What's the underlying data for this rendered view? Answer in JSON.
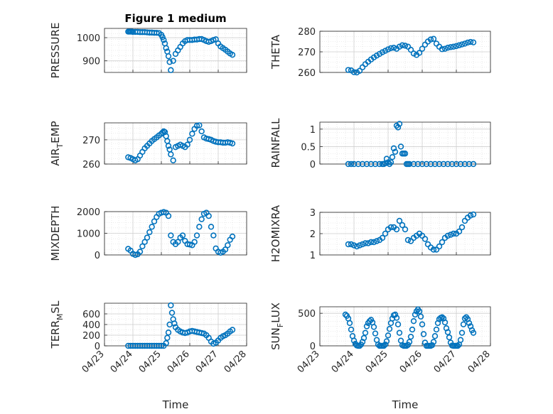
{
  "figure": {
    "title": "Figure 1 medium",
    "xlabel": "Time",
    "colors": {
      "marker": "#0072BD",
      "grid": "#d9d9d9",
      "axes": "#262626",
      "background": "#ffffff"
    }
  },
  "chart_data": [
    {
      "id": "pressure",
      "type": "scatter",
      "title": "Figure 1 medium",
      "ylabel": "PRESSURE",
      "ylabel_sub": "",
      "ylabel_tail": "",
      "xlim": [
        "04/23",
        "04/28"
      ],
      "ylim": [
        850,
        1040
      ],
      "yticks": [
        900,
        1000
      ],
      "ytick_labels": [
        "900",
        "1000"
      ],
      "xticks": [],
      "grid": true,
      "x": [
        "04/23 20:00",
        "04/23 21:00",
        "04/23 22:00",
        "04/23 23:00",
        "04/24 00:00",
        "04/24 02:00",
        "04/24 04:00",
        "04/24 06:00",
        "04/24 08:00",
        "04/24 10:00",
        "04/24 12:00",
        "04/24 14:00",
        "04/24 16:00",
        "04/24 18:00",
        "04/24 20:00",
        "04/24 22:00",
        "04/25 00:00",
        "04/25 01:00",
        "04/25 02:00",
        "04/25 03:00",
        "04/25 04:00",
        "04/25 05:00",
        "04/25 06:00",
        "04/25 07:00",
        "04/25 08:00",
        "04/25 10:00",
        "04/25 12:00",
        "04/25 14:00",
        "04/25 16:00",
        "04/25 18:00",
        "04/25 20:00",
        "04/25 22:00",
        "04/26 00:00",
        "04/26 02:00",
        "04/26 04:00",
        "04/26 06:00",
        "04/26 08:00",
        "04/26 10:00",
        "04/26 12:00",
        "04/26 14:00",
        "04/26 16:00",
        "04/26 18:00",
        "04/26 20:00",
        "04/26 22:00",
        "04/27 00:00",
        "04/27 02:00",
        "04/27 04:00",
        "04/27 06:00",
        "04/27 08:00",
        "04/27 10:00",
        "04/27 12:00"
      ],
      "y": [
        1026,
        1026,
        1026,
        1026,
        1025,
        1025,
        1025,
        1024,
        1024,
        1024,
        1023,
        1022,
        1022,
        1021,
        1021,
        1020,
        1012,
        1002,
        990,
        975,
        955,
        940,
        920,
        895,
        860,
        900,
        930,
        945,
        960,
        975,
        985,
        990,
        990,
        990,
        992,
        992,
        994,
        994,
        990,
        985,
        982,
        985,
        990,
        993,
        975,
        962,
        955,
        948,
        940,
        932,
        926
      ]
    },
    {
      "id": "theta",
      "type": "scatter",
      "ylabel": "THETA",
      "ylabel_sub": "",
      "ylabel_tail": "",
      "xlim": [
        "04/23",
        "04/28"
      ],
      "ylim": [
        260,
        280
      ],
      "yticks": [
        260,
        270,
        280
      ],
      "ytick_labels": [
        "260",
        "270",
        "280"
      ],
      "xticks": [],
      "grid": true,
      "x": [
        "04/23 20:00",
        "04/23 22:00",
        "04/24 00:00",
        "04/24 02:00",
        "04/24 04:00",
        "04/24 06:00",
        "04/24 08:00",
        "04/24 10:00",
        "04/24 12:00",
        "04/24 14:00",
        "04/24 16:00",
        "04/24 18:00",
        "04/24 20:00",
        "04/24 22:00",
        "04/25 00:00",
        "04/25 02:00",
        "04/25 04:00",
        "04/25 06:00",
        "04/25 08:00",
        "04/25 10:00",
        "04/25 12:00",
        "04/25 14:00",
        "04/25 16:00",
        "04/25 18:00",
        "04/25 20:00",
        "04/25 22:00",
        "04/26 00:00",
        "04/26 02:00",
        "04/26 04:00",
        "04/26 06:00",
        "04/26 08:00",
        "04/26 10:00",
        "04/26 12:00",
        "04/26 14:00",
        "04/26 16:00",
        "04/26 18:00",
        "04/26 20:00",
        "04/26 22:00",
        "04/27 00:00",
        "04/27 02:00",
        "04/27 04:00",
        "04/27 06:00",
        "04/27 08:00",
        "04/27 10:00",
        "04/27 12:00"
      ],
      "y": [
        261.2,
        261.0,
        260.1,
        259.8,
        260.8,
        262.5,
        264.0,
        265.2,
        266.3,
        267.3,
        268.2,
        269.0,
        269.8,
        270.5,
        271.2,
        271.8,
        272.0,
        271.5,
        272.5,
        273.2,
        273.0,
        272.5,
        271.0,
        269.2,
        268.5,
        269.5,
        271.5,
        273.5,
        275.0,
        276.0,
        276.3,
        274.0,
        272.5,
        271.3,
        271.5,
        272.0,
        272.3,
        272.5,
        272.8,
        273.2,
        273.6,
        274.0,
        274.5,
        274.8,
        274.6
      ]
    },
    {
      "id": "air_temp",
      "type": "scatter",
      "ylabel": "AIR",
      "ylabel_sub": "T",
      "ylabel_tail": "EMP",
      "xlim": [
        "04/23",
        "04/28"
      ],
      "ylim": [
        260,
        277
      ],
      "yticks": [
        260,
        270
      ],
      "ytick_labels": [
        "260",
        "270"
      ],
      "xticks": [],
      "grid": true,
      "x": [
        "04/23 20:00",
        "04/23 22:00",
        "04/24 00:00",
        "04/24 02:00",
        "04/24 04:00",
        "04/24 06:00",
        "04/24 08:00",
        "04/24 10:00",
        "04/24 12:00",
        "04/24 14:00",
        "04/24 16:00",
        "04/24 18:00",
        "04/24 20:00",
        "04/24 22:00",
        "04/25 00:00",
        "04/25 01:00",
        "04/25 02:00",
        "04/25 03:00",
        "04/25 04:00",
        "04/25 05:00",
        "04/25 06:00",
        "04/25 07:00",
        "04/25 08:00",
        "04/25 10:00",
        "04/25 12:00",
        "04/25 14:00",
        "04/25 16:00",
        "04/25 18:00",
        "04/25 20:00",
        "04/25 22:00",
        "04/26 00:00",
        "04/26 02:00",
        "04/26 04:00",
        "04/26 06:00",
        "04/26 08:00",
        "04/26 10:00",
        "04/26 12:00",
        "04/26 14:00",
        "04/26 16:00",
        "04/26 18:00",
        "04/26 20:00",
        "04/26 22:00",
        "04/27 00:00",
        "04/27 02:00",
        "04/27 04:00",
        "04/27 06:00",
        "04/27 08:00",
        "04/27 10:00",
        "04/27 12:00"
      ],
      "y": [
        262.8,
        262.5,
        262.0,
        261.5,
        262.0,
        263.5,
        265.0,
        266.5,
        267.5,
        268.5,
        269.5,
        270.3,
        271.0,
        271.8,
        272.5,
        273.0,
        273.5,
        273.2,
        271.5,
        269.5,
        267.5,
        266.0,
        264.0,
        261.5,
        267.0,
        267.5,
        268.0,
        267.5,
        267.0,
        268.0,
        270.0,
        272.5,
        274.5,
        275.8,
        276.0,
        273.5,
        271.0,
        270.5,
        270.3,
        270.0,
        269.5,
        269.2,
        269.0,
        269.0,
        268.8,
        268.8,
        269.0,
        268.8,
        268.5
      ]
    },
    {
      "id": "rainfall",
      "type": "scatter",
      "ylabel": "RAINFALL",
      "ylabel_sub": "",
      "ylabel_tail": "",
      "xlim": [
        "04/23",
        "04/28"
      ],
      "ylim": [
        0,
        1.2
      ],
      "yticks": [
        0,
        0.5,
        1
      ],
      "ytick_labels": [
        "0",
        "0.5",
        "1"
      ],
      "xticks": [],
      "grid": true,
      "x": [
        "04/23 20:00",
        "04/23 22:00",
        "04/24 00:00",
        "04/24 03:00",
        "04/24 06:00",
        "04/24 09:00",
        "04/24 12:00",
        "04/24 15:00",
        "04/24 18:00",
        "04/24 20:00",
        "04/24 21:00",
        "04/24 22:00",
        "04/24 23:00",
        "04/25 00:00",
        "04/25 01:00",
        "04/25 02:00",
        "04/25 03:00",
        "04/25 04:00",
        "04/25 05:00",
        "04/25 06:00",
        "04/25 07:00",
        "04/25 08:00",
        "04/25 09:00",
        "04/25 10:00",
        "04/25 11:00",
        "04/25 12:00",
        "04/25 13:00",
        "04/25 14:00",
        "04/25 15:00",
        "04/25 18:00",
        "04/25 21:00",
        "04/26 00:00",
        "04/26 03:00",
        "04/26 06:00",
        "04/26 09:00",
        "04/26 12:00",
        "04/26 15:00",
        "04/26 18:00",
        "04/26 21:00",
        "04/27 00:00",
        "04/27 03:00",
        "04/27 06:00",
        "04/27 09:00",
        "04/27 12:00"
      ],
      "y": [
        0,
        0,
        0,
        0,
        0,
        0,
        0,
        0,
        0,
        0,
        0,
        0.02,
        0.15,
        0.05,
        0,
        0.05,
        0.2,
        0.45,
        0.35,
        1.1,
        1.05,
        1.15,
        0.5,
        0.3,
        0.3,
        0.3,
        0,
        0,
        0,
        0,
        0,
        0,
        0,
        0,
        0,
        0,
        0,
        0,
        0,
        0,
        0,
        0,
        0,
        0
      ]
    },
    {
      "id": "mixdepth",
      "type": "scatter",
      "ylabel": "MIXDEPTH",
      "ylabel_sub": "",
      "ylabel_tail": "",
      "xlim": [
        "04/23",
        "04/28"
      ],
      "ylim": [
        0,
        2000
      ],
      "yticks": [
        0,
        1000,
        2000
      ],
      "ytick_labels": [
        "0",
        "1000",
        "2000"
      ],
      "xticks": [],
      "grid": true,
      "x": [
        "04/23 20:00",
        "04/23 22:00",
        "04/24 00:00",
        "04/24 02:00",
        "04/24 04:00",
        "04/24 06:00",
        "04/24 08:00",
        "04/24 10:00",
        "04/24 12:00",
        "04/24 14:00",
        "04/24 16:00",
        "04/24 18:00",
        "04/24 20:00",
        "04/24 22:00",
        "04/25 00:00",
        "04/25 02:00",
        "04/25 04:00",
        "04/25 06:00",
        "04/25 08:00",
        "04/25 10:00",
        "04/25 12:00",
        "04/25 14:00",
        "04/25 16:00",
        "04/25 18:00",
        "04/25 20:00",
        "04/25 22:00",
        "04/26 00:00",
        "04/26 02:00",
        "04/26 04:00",
        "04/26 06:00",
        "04/26 08:00",
        "04/26 10:00",
        "04/26 12:00",
        "04/26 14:00",
        "04/26 16:00",
        "04/26 18:00",
        "04/26 20:00",
        "04/26 22:00",
        "04/27 00:00",
        "04/27 02:00",
        "04/27 04:00",
        "04/27 06:00",
        "04/27 08:00",
        "04/27 10:00",
        "04/27 12:00"
      ],
      "y": [
        280,
        200,
        50,
        0,
        30,
        150,
        400,
        600,
        800,
        1050,
        1300,
        1550,
        1750,
        1900,
        1950,
        1980,
        1950,
        1800,
        900,
        600,
        500,
        600,
        800,
        900,
        650,
        500,
        480,
        450,
        600,
        900,
        1300,
        1650,
        1900,
        1950,
        1800,
        1300,
        900,
        300,
        150,
        100,
        150,
        250,
        450,
        700,
        850
      ]
    },
    {
      "id": "h2omixra",
      "type": "scatter",
      "ylabel": "H2OMIXRA",
      "ylabel_sub": "",
      "ylabel_tail": "",
      "xlim": [
        "04/23",
        "04/28"
      ],
      "ylim": [
        1,
        3
      ],
      "yticks": [
        1,
        2,
        3
      ],
      "ytick_labels": [
        "1",
        "2",
        "3"
      ],
      "xticks": [],
      "grid": true,
      "x": [
        "04/23 20:00",
        "04/23 22:00",
        "04/24 00:00",
        "04/24 02:00",
        "04/24 04:00",
        "04/24 06:00",
        "04/24 08:00",
        "04/24 10:00",
        "04/24 12:00",
        "04/24 14:00",
        "04/24 16:00",
        "04/24 18:00",
        "04/24 20:00",
        "04/24 22:00",
        "04/25 00:00",
        "04/25 02:00",
        "04/25 04:00",
        "04/25 06:00",
        "04/25 08:00",
        "04/25 10:00",
        "04/25 12:00",
        "04/25 14:00",
        "04/25 16:00",
        "04/25 18:00",
        "04/25 20:00",
        "04/25 22:00",
        "04/26 00:00",
        "04/26 02:00",
        "04/26 04:00",
        "04/26 06:00",
        "04/26 08:00",
        "04/26 10:00",
        "04/26 12:00",
        "04/26 14:00",
        "04/26 16:00",
        "04/26 18:00",
        "04/26 20:00",
        "04/26 22:00",
        "04/27 00:00",
        "04/27 02:00",
        "04/27 04:00",
        "04/27 06:00",
        "04/27 08:00",
        "04/27 10:00",
        "04/27 12:00"
      ],
      "y": [
        1.5,
        1.5,
        1.45,
        1.4,
        1.45,
        1.5,
        1.55,
        1.55,
        1.6,
        1.6,
        1.65,
        1.7,
        1.8,
        2.0,
        2.2,
        2.3,
        2.3,
        2.2,
        2.6,
        2.4,
        2.2,
        1.7,
        1.65,
        1.8,
        1.9,
        2.0,
        1.9,
        1.75,
        1.5,
        1.35,
        1.25,
        1.25,
        1.4,
        1.6,
        1.8,
        1.9,
        1.95,
        2.0,
        2.0,
        2.1,
        2.3,
        2.6,
        2.75,
        2.85,
        2.9
      ]
    },
    {
      "id": "terr_msl",
      "type": "scatter",
      "ylabel": "TERR",
      "ylabel_sub": "M",
      "ylabel_tail": "SL",
      "xlim": [
        "04/23",
        "04/28"
      ],
      "ylim": [
        0,
        800
      ],
      "yticks": [
        0,
        200,
        400,
        600
      ],
      "ytick_labels": [
        "0",
        "200",
        "400",
        "600"
      ],
      "xticks": [
        "04/23",
        "04/24",
        "04/25",
        "04/26",
        "04/27",
        "04/28"
      ],
      "xtick_labels": [
        "04/23",
        "04/24",
        "04/25",
        "04/26",
        "04/27",
        "04/28"
      ],
      "grid": true,
      "x": [
        "04/23 20:00",
        "04/23 22:00",
        "04/24 00:00",
        "04/24 02:00",
        "04/24 04:00",
        "04/24 06:00",
        "04/24 08:00",
        "04/24 10:00",
        "04/24 12:00",
        "04/24 14:00",
        "04/24 16:00",
        "04/24 18:00",
        "04/24 20:00",
        "04/24 22:00",
        "04/25 00:00",
        "04/25 02:00",
        "04/25 04:00",
        "04/25 05:00",
        "04/25 06:00",
        "04/25 07:00",
        "04/25 08:00",
        "04/25 09:00",
        "04/25 10:00",
        "04/25 11:00",
        "04/25 12:00",
        "04/25 14:00",
        "04/25 16:00",
        "04/25 18:00",
        "04/25 20:00",
        "04/25 22:00",
        "04/26 00:00",
        "04/26 02:00",
        "04/26 04:00",
        "04/26 06:00",
        "04/26 08:00",
        "04/26 10:00",
        "04/26 12:00",
        "04/26 14:00",
        "04/26 16:00",
        "04/26 18:00",
        "04/26 20:00",
        "04/26 22:00",
        "04/27 00:00",
        "04/27 02:00",
        "04/27 04:00",
        "04/27 06:00",
        "04/27 08:00",
        "04/27 10:00",
        "04/27 12:00"
      ],
      "y": [
        0,
        0,
        0,
        0,
        0,
        0,
        0,
        0,
        0,
        0,
        0,
        0,
        0,
        0,
        0,
        0,
        50,
        150,
        250,
        400,
        760,
        620,
        500,
        420,
        350,
        300,
        270,
        250,
        240,
        250,
        270,
        280,
        270,
        260,
        250,
        240,
        230,
        200,
        150,
        80,
        40,
        60,
        100,
        150,
        180,
        200,
        230,
        270,
        300
      ]
    },
    {
      "id": "sun_flux",
      "type": "scatter",
      "ylabel": "SUN",
      "ylabel_sub": "F",
      "ylabel_tail": "LUX",
      "xlim": [
        "04/23",
        "04/28"
      ],
      "ylim": [
        0,
        600
      ],
      "yticks": [
        0,
        500
      ],
      "ytick_labels": [
        "0",
        "500"
      ],
      "xticks": [
        "04/23",
        "04/24",
        "04/25",
        "04/26",
        "04/27",
        "04/28"
      ],
      "xtick_labels": [
        "04/23",
        "04/24",
        "04/25",
        "04/26",
        "04/27",
        "04/28"
      ],
      "grid": true,
      "x": [
        "04/23 18:00",
        "04/23 19:00",
        "04/23 20:00",
        "04/23 21:00",
        "04/23 22:00",
        "04/23 23:00",
        "04/24 00:00",
        "04/24 01:00",
        "04/24 02:00",
        "04/24 03:00",
        "04/24 04:00",
        "04/24 05:00",
        "04/24 06:00",
        "04/24 07:00",
        "04/24 08:00",
        "04/24 09:00",
        "04/24 10:00",
        "04/24 11:00",
        "04/24 12:00",
        "04/24 13:00",
        "04/24 14:00",
        "04/24 15:00",
        "04/24 16:00",
        "04/24 17:00",
        "04/24 18:00",
        "04/24 19:00",
        "04/24 20:00",
        "04/24 21:00",
        "04/24 22:00",
        "04/24 23:00",
        "04/25 00:00",
        "04/25 01:00",
        "04/25 02:00",
        "04/25 03:00",
        "04/25 04:00",
        "04/25 05:00",
        "04/25 06:00",
        "04/25 07:00",
        "04/25 08:00",
        "04/25 09:00",
        "04/25 10:00",
        "04/25 11:00",
        "04/25 12:00",
        "04/25 13:00",
        "04/25 14:00",
        "04/25 15:00",
        "04/25 16:00",
        "04/25 17:00",
        "04/25 18:00",
        "04/25 19:00",
        "04/25 20:00",
        "04/25 21:00",
        "04/25 22:00",
        "04/25 23:00",
        "04/26 00:00",
        "04/26 01:00",
        "04/26 02:00",
        "04/26 03:00",
        "04/26 04:00",
        "04/26 05:00",
        "04/26 06:00",
        "04/26 07:00",
        "04/26 08:00",
        "04/26 09:00",
        "04/26 10:00",
        "04/26 11:00",
        "04/26 12:00",
        "04/26 13:00",
        "04/26 14:00",
        "04/26 15:00",
        "04/26 16:00",
        "04/26 17:00",
        "04/26 18:00",
        "04/26 19:00",
        "04/26 20:00",
        "04/26 21:00",
        "04/26 22:00",
        "04/26 23:00",
        "04/27 00:00",
        "04/27 01:00",
        "04/27 02:00",
        "04/27 03:00",
        "04/27 04:00",
        "04/27 05:00",
        "04/27 06:00",
        "04/27 07:00",
        "04/27 08:00",
        "04/27 09:00",
        "04/27 10:00",
        "04/27 11:00",
        "04/27 12:00"
      ],
      "y": [
        480,
        460,
        420,
        350,
        250,
        150,
        80,
        30,
        5,
        0,
        0,
        20,
        60,
        120,
        200,
        300,
        350,
        380,
        400,
        360,
        290,
        190,
        90,
        20,
        0,
        0,
        0,
        0,
        20,
        70,
        160,
        260,
        350,
        420,
        470,
        480,
        430,
        330,
        200,
        80,
        10,
        0,
        0,
        0,
        15,
        60,
        140,
        250,
        380,
        480,
        530,
        560,
        530,
        450,
        330,
        180,
        50,
        0,
        0,
        0,
        0,
        10,
        60,
        150,
        250,
        350,
        410,
        430,
        440,
        420,
        360,
        270,
        210,
        130,
        50,
        5,
        0,
        0,
        0,
        0,
        20,
        90,
        200,
        330,
        420,
        440,
        410,
        350,
        300,
        240,
        200
      ]
    }
  ]
}
